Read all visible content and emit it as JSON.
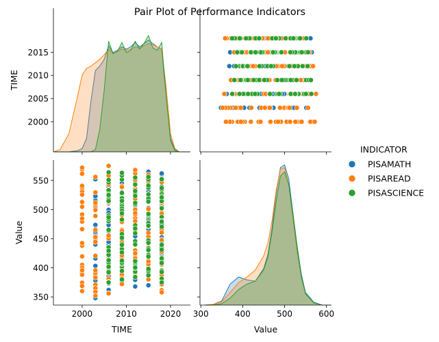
{
  "chart_data": {
    "type": "scatter",
    "title": "Pair Plot of Performance Indicators",
    "variables": [
      "TIME",
      "Value"
    ],
    "legend": {
      "title": "INDICATOR",
      "placement": "right",
      "entries": [
        "PISAMATH",
        "PISAREAD",
        "PISASCIENCE"
      ]
    },
    "series_colors": {
      "PISAMATH": "#1f77b4",
      "PISAREAD": "#ff7f0e",
      "PISASCIENCE": "#2ca02c"
    },
    "axes": {
      "TIME": {
        "label": "TIME",
        "ticks": [
          2000,
          2005,
          2010,
          2015
        ],
        "ticks_bottom": [
          2000,
          2010,
          2020
        ],
        "range": [
          1993.5,
          2024.5
        ]
      },
      "Value": {
        "label": "Value",
        "ticks": [
          350,
          400,
          450,
          500,
          550
        ],
        "ticks_bottom": [
          300,
          400,
          500,
          600
        ],
        "range": [
          336,
          585
        ]
      }
    },
    "years": {
      "PISAMATH": [
        2003,
        2006,
        2009,
        2012,
        2015,
        2018
      ],
      "PISAREAD": [
        2000,
        2003,
        2006,
        2009,
        2012,
        2015,
        2018
      ],
      "PISASCIENCE": [
        2006,
        2009,
        2012,
        2015,
        2018
      ]
    },
    "value_ranges": {
      "PISAMATH": {
        "2003": [
          348,
          552
        ],
        "2006": [
          362,
          548
        ],
        "2009": [
          372,
          562
        ],
        "2012": [
          368,
          562
        ],
        "2015": [
          370,
          565
        ],
        "2018": [
          372,
          562
        ]
      },
      "PISAREAD": {
        "2000": [
          360,
          572
        ],
        "2003": [
          352,
          556
        ],
        "2006": [
          356,
          575
        ],
        "2009": [
          372,
          558
        ],
        "2012": [
          385,
          568
        ],
        "2015": [
          380,
          560
        ],
        "2018": [
          358,
          547
        ]
      },
      "PISASCIENCE": {
        "2006": [
          375,
          564
        ],
        "2009": [
          380,
          563
        ],
        "2012": [
          384,
          555
        ],
        "2015": [
          387,
          556
        ],
        "2018": [
          375,
          552
        ]
      }
    },
    "kde_time": {
      "x": [
        1993.5,
        1995,
        1997,
        1999,
        2000,
        2001,
        2002,
        2003,
        2004,
        2005,
        2006,
        2007,
        2008,
        2009,
        2010,
        2011,
        2012,
        2013,
        2014,
        2015,
        2016,
        2017,
        2018,
        2019,
        2020,
        2021,
        2022,
        2024.5
      ],
      "PISAMATH": [
        0,
        0,
        0,
        0.01,
        0.03,
        0.12,
        0.45,
        0.72,
        0.76,
        0.82,
        0.94,
        0.88,
        0.9,
        0.93,
        0.91,
        0.93,
        0.97,
        0.93,
        0.96,
        0.99,
        0.96,
        0.93,
        0.91,
        0.5,
        0.12,
        0.02,
        0,
        0
      ],
      "PISAREAD": [
        0,
        0.02,
        0.16,
        0.5,
        0.68,
        0.74,
        0.76,
        0.79,
        0.82,
        0.86,
        0.91,
        0.87,
        0.89,
        0.91,
        0.9,
        0.91,
        0.93,
        0.92,
        0.94,
        0.96,
        0.95,
        0.93,
        0.91,
        0.58,
        0.16,
        0.03,
        0,
        0
      ],
      "PISASCIENCE": [
        0,
        0,
        0,
        0,
        0,
        0,
        0,
        0.02,
        0.2,
        0.55,
        0.98,
        0.87,
        0.89,
        0.97,
        0.88,
        0.9,
        0.98,
        0.91,
        0.96,
        1.03,
        0.92,
        0.9,
        0.97,
        0.5,
        0.1,
        0.01,
        0,
        0
      ]
    },
    "kde_value": {
      "x": [
        310,
        330,
        350,
        370,
        390,
        410,
        430,
        450,
        460,
        470,
        480,
        490,
        500,
        510,
        520,
        530,
        540,
        550,
        570,
        590,
        610
      ],
      "PISAMATH": [
        0,
        0.005,
        0.03,
        0.15,
        0.2,
        0.18,
        0.17,
        0.26,
        0.36,
        0.55,
        0.8,
        0.98,
        1.0,
        0.9,
        0.66,
        0.42,
        0.22,
        0.09,
        0.02,
        0,
        0
      ],
      "PISAREAD": [
        0,
        0.004,
        0.025,
        0.09,
        0.16,
        0.2,
        0.25,
        0.35,
        0.44,
        0.6,
        0.82,
        0.97,
        0.98,
        0.86,
        0.62,
        0.38,
        0.2,
        0.08,
        0.015,
        0,
        0
      ],
      "PISASCIENCE": [
        0,
        0,
        0.01,
        0.05,
        0.11,
        0.15,
        0.17,
        0.25,
        0.34,
        0.52,
        0.74,
        0.92,
        0.95,
        0.86,
        0.64,
        0.4,
        0.2,
        0.08,
        0.015,
        0,
        0
      ]
    }
  }
}
